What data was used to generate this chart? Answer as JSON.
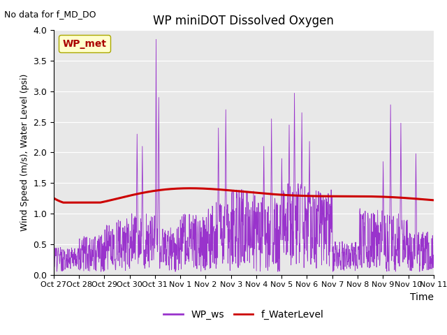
{
  "title": "WP miniDOT Dissolved Oxygen",
  "top_left_text": "No data for f_MD_DO",
  "ylabel": "Wind Speed (m/s), Water Level (psi)",
  "xlabel": "Time",
  "legend_box_label": "WP_met",
  "legend_entries": [
    "WP_ws",
    "f_WaterLevel"
  ],
  "line_colors": [
    "#9933cc",
    "#cc0000"
  ],
  "ylim": [
    0.0,
    4.0
  ],
  "yticks": [
    0.0,
    0.5,
    1.0,
    1.5,
    2.0,
    2.5,
    3.0,
    3.5,
    4.0
  ],
  "xtick_labels": [
    "Oct 27",
    "Oct 28",
    "Oct 29",
    "Oct 30",
    "Oct 31",
    "Nov 1",
    "Nov 2",
    "Nov 3",
    "Nov 4",
    "Nov 5",
    "Nov 6",
    "Nov 7",
    "Nov 8",
    "Nov 9",
    "Nov 10",
    "Nov 11"
  ],
  "axes_bg_color": "#e8e8e8",
  "fig_bg_color": "#ffffff",
  "n_days": 15,
  "pts_per_day": 96,
  "seed": 12345,
  "grid_color": "#ffffff",
  "ws_linewidth": 0.6,
  "wl_linewidth": 2.2
}
